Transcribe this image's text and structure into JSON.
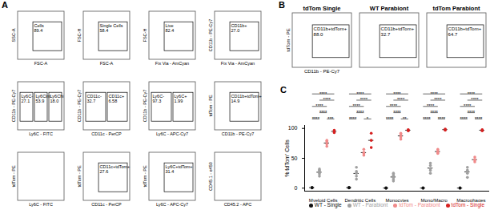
{
  "panel_labels": [
    "A",
    "B",
    "C"
  ],
  "panel_A": {
    "plots": [
      {
        "x_label": "FSC-A",
        "y_label": "SSC-A",
        "gates": [
          {
            "name": "Cells",
            "value": "89.4"
          }
        ]
      },
      {
        "x_label": "FSC-A",
        "y_label": "FSC-H",
        "gates": [
          {
            "name": "Single Cells",
            "value": "58.4"
          }
        ]
      },
      {
        "x_label": "Fix Via - AmCyan",
        "y_label": "FSC-H",
        "gates": [
          {
            "name": "Live",
            "value": "82.4"
          }
        ]
      },
      {
        "x_label": "Fix Via - AmCyan",
        "y_label": "CD11b - PE-Cy7",
        "gates": [
          {
            "name": "CD11b+",
            "value": "27.0"
          }
        ]
      },
      {
        "x_label": "Ly6C - FITC",
        "y_label": "CD11b - PE-Cy7",
        "gates": [
          {
            "name": "Ly6C-",
            "value": "27.1"
          },
          {
            "name": "Ly6Cint",
            "value": "53.9"
          },
          {
            "name": "Ly6Chi",
            "value": "18.0"
          }
        ]
      },
      {
        "x_label": "CD11c - PerCP",
        "y_label": "CD11b - PE-Cy7",
        "gates": [
          {
            "name": "CD11c-",
            "value": "32.7"
          },
          {
            "name": "CD11c+",
            "value": "6.58"
          }
        ]
      },
      {
        "x_label": "Ly6C - APC-Cy7",
        "y_label": "CD11b - PE-Cy7",
        "gates": [
          {
            "name": "Ly6C-",
            "value": "97.3"
          },
          {
            "name": "Ly6C+",
            "value": "1.99"
          }
        ]
      },
      {
        "x_label": "CD11b - PE-Cy7",
        "y_label": "tdTom - PE",
        "gates": [
          {
            "name": "CD11b+tdTom+",
            "value": "14.9"
          }
        ]
      },
      {
        "x_label": "Ly6C - FITC",
        "y_label": "tdTom - PE",
        "gates": []
      },
      {
        "x_label": "CD11c - PerCP",
        "y_label": "tdTom - PE",
        "gates": [
          {
            "name": "CD11c+tdTom+",
            "value": "27.6"
          }
        ]
      },
      {
        "x_label": "Ly6C - APC-Cy7",
        "y_label": "tdTom - PE",
        "gates": [
          {
            "name": "Ly6C+tdTom+",
            "value": "31.4"
          }
        ]
      },
      {
        "x_label": "CD45.2 - APC",
        "y_label": "CD45.1 - e450",
        "gates": []
      }
    ]
  },
  "panel_B": {
    "x_label": "CD11b - PE-Cy7",
    "y_label": "tdTom - PE",
    "plots": [
      {
        "title": "tdTom Single",
        "gates": [
          {
            "name": "CD11b+tdTom+",
            "value": "88.0"
          }
        ]
      },
      {
        "title": "WT Parabiont",
        "gates": [
          {
            "name": "CD11b+tdTom+",
            "value": "32.7"
          }
        ]
      },
      {
        "title": "tdTom Parabiont",
        "gates": [
          {
            "name": "CD11b+tdTom+",
            "value": "64.7"
          }
        ]
      }
    ]
  },
  "chart_data": {
    "type": "scatter",
    "y_label": "% tdTom⁺ Cells",
    "categories": [
      "Myeloid Cells",
      "Dendritic Cells",
      "Monocytes",
      "Mono/Macro",
      "Macrophages"
    ],
    "ylim": [
      -5,
      105
    ],
    "yticks": [
      0,
      50,
      100
    ],
    "series": [
      {
        "name": "WT - Single",
        "color": "#111111",
        "values": [
          [
            1,
            1,
            0.5
          ],
          [
            1,
            0.5,
            1
          ],
          [
            0,
            0.5,
            0
          ],
          [
            0,
            0.5,
            0
          ],
          [
            0,
            0.5,
            0
          ]
        ]
      },
      {
        "name": "WT - Parabiont",
        "color": "#a0a0a0",
        "values": [
          [
            20,
            24,
            26,
            28,
            30,
            32
          ],
          [
            15,
            20,
            25,
            28,
            35
          ],
          [
            12,
            15,
            18,
            20,
            22,
            25
          ],
          [
            25,
            30,
            33,
            38,
            42
          ],
          [
            18,
            25,
            28,
            30,
            35
          ]
        ]
      },
      {
        "name": "tdTom - Parabiont",
        "color": "#f08a8a",
        "values": [
          [
            70,
            74,
            78,
            80
          ],
          [
            55,
            58,
            60,
            65
          ],
          [
            82,
            86,
            90,
            92
          ],
          [
            58,
            60,
            62,
            65
          ],
          [
            44,
            47,
            48,
            52
          ]
        ]
      },
      {
        "name": "tdTom - Single",
        "color": "#d62020",
        "values": [
          [
            93,
            95,
            97
          ],
          [
            68,
            80,
            92
          ],
          [
            96,
            97,
            98
          ],
          [
            97,
            98,
            99
          ],
          [
            96,
            97,
            98
          ]
        ]
      }
    ],
    "significance": [
      {
        "category": "Myeloid Cells",
        "pairs": [
          {
            "groups": [
              "WT - Single",
              "WT - Parabiont"
            ],
            "label": "****"
          },
          {
            "groups": [
              "tdTom - Parabiont",
              "tdTom - Single"
            ],
            "label": "***"
          },
          {
            "groups": [
              "WT - Parabiont",
              "tdTom - Parabiont"
            ],
            "label": "****"
          },
          {
            "groups": [
              "WT - Single",
              "tdTom - Parabiont"
            ],
            "label": "****"
          },
          {
            "groups": [
              "WT - Parabiont",
              "tdTom - Single"
            ],
            "label": "****"
          },
          {
            "groups": [
              "WT - Single",
              "tdTom - Single"
            ],
            "label": "****"
          }
        ]
      },
      {
        "category": "Dendritic Cells",
        "pairs": [
          {
            "groups": [
              "WT - Single",
              "WT - Parabiont"
            ],
            "label": "****"
          },
          {
            "groups": [
              "tdTom - Parabiont",
              "tdTom - Single"
            ],
            "label": "*"
          },
          {
            "groups": [
              "WT - Parabiont",
              "tdTom - Parabiont"
            ],
            "label": "****"
          },
          {
            "groups": [
              "WT - Single",
              "tdTom - Parabiont"
            ],
            "label": "****"
          },
          {
            "groups": [
              "WT - Parabiont",
              "tdTom - Single"
            ],
            "label": "****"
          },
          {
            "groups": [
              "WT - Single",
              "tdTom - Single"
            ],
            "label": "****"
          }
        ]
      },
      {
        "category": "Monocytes",
        "pairs": [
          {
            "groups": [
              "WT - Single",
              "WT - Parabiont"
            ],
            "label": "****"
          },
          {
            "groups": [
              "tdTom - Parabiont",
              "tdTom - Single"
            ],
            "label": "**"
          },
          {
            "groups": [
              "WT - Parabiont",
              "tdTom - Parabiont"
            ],
            "label": "****"
          },
          {
            "groups": [
              "WT - Single",
              "tdTom - Parabiont"
            ],
            "label": "****"
          },
          {
            "groups": [
              "WT - Parabiont",
              "tdTom - Single"
            ],
            "label": "****"
          },
          {
            "groups": [
              "WT - Single",
              "tdTom - Single"
            ],
            "label": "****"
          }
        ]
      },
      {
        "category": "Mono/Macro",
        "pairs": [
          {
            "groups": [
              "WT - Single",
              "WT - Parabiont"
            ],
            "label": "****"
          },
          {
            "groups": [
              "tdTom - Parabiont",
              "tdTom - Single"
            ],
            "label": "****"
          },
          {
            "groups": [
              "WT - Parabiont",
              "tdTom - Parabiont"
            ],
            "label": "****"
          },
          {
            "groups": [
              "WT - Single",
              "tdTom - Parabiont"
            ],
            "label": "****"
          },
          {
            "groups": [
              "WT - Parabiont",
              "tdTom - Single"
            ],
            "label": "****"
          },
          {
            "groups": [
              "WT - Single",
              "tdTom - Single"
            ],
            "label": "****"
          }
        ]
      },
      {
        "category": "Macrophages",
        "pairs": [
          {
            "groups": [
              "WT - Single",
              "WT - Parabiont"
            ],
            "label": "****"
          },
          {
            "groups": [
              "tdTom - Parabiont",
              "tdTom - Single"
            ],
            "label": "****"
          },
          {
            "groups": [
              "WT - Parabiont",
              "tdTom - Parabiont"
            ],
            "label": "****"
          },
          {
            "groups": [
              "WT - Single",
              "tdTom - Parabiont"
            ],
            "label": "****"
          },
          {
            "groups": [
              "WT - Parabiont",
              "tdTom - Single"
            ],
            "label": "****"
          },
          {
            "groups": [
              "WT - Single",
              "tdTom - Single"
            ],
            "label": "****"
          }
        ]
      }
    ]
  }
}
